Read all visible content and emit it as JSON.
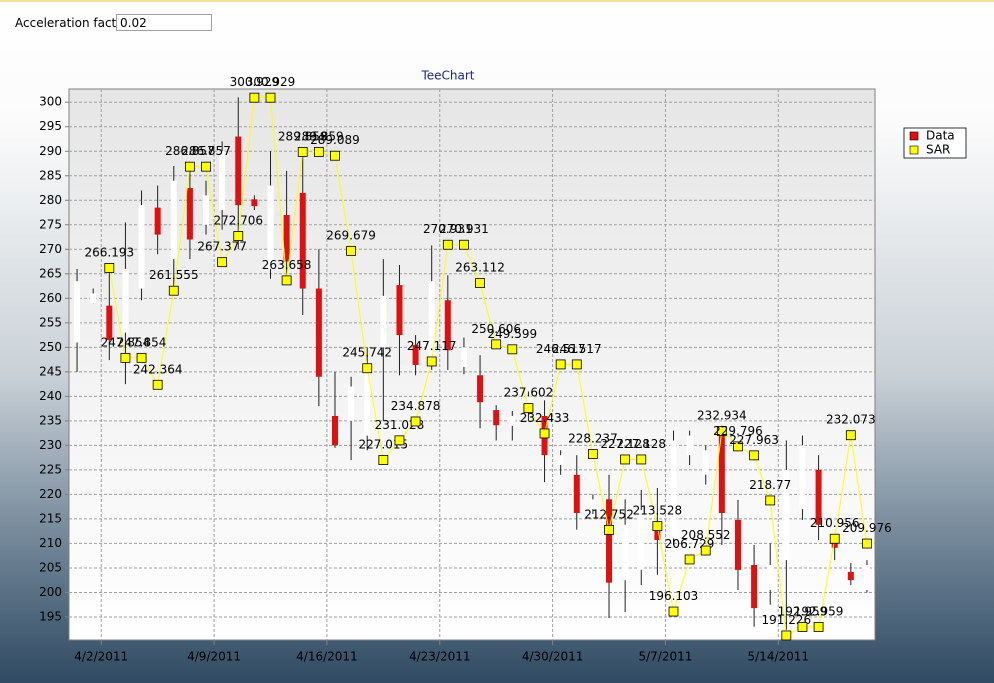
{
  "controls": {
    "acceleration_label": "Acceleration factor",
    "acceleration_value": "0.02"
  },
  "chart_data": {
    "type": "candlestick",
    "title": "TeeChart",
    "x": [
      "3/31/2011",
      "4/1/2011",
      "4/2/2011",
      "4/3/2011",
      "4/4/2011",
      "4/5/2011",
      "4/6/2011",
      "4/7/2011",
      "4/8/2011",
      "4/9/2011",
      "4/10/2011",
      "4/11/2011",
      "4/12/2011",
      "4/13/2011",
      "4/14/2011",
      "4/15/2011",
      "4/16/2011",
      "4/17/2011",
      "4/18/2011",
      "4/19/2011",
      "4/20/2011",
      "4/21/2011",
      "4/22/2011",
      "4/23/2011",
      "4/24/2011",
      "4/25/2011",
      "4/26/2011",
      "4/27/2011",
      "4/28/2011",
      "4/29/2011",
      "4/30/2011",
      "5/1/2011",
      "5/2/2011",
      "5/3/2011",
      "5/4/2011",
      "5/5/2011",
      "5/6/2011",
      "5/7/2011",
      "5/8/2011",
      "5/9/2011",
      "5/10/2011",
      "5/11/2011",
      "5/12/2011",
      "5/13/2011",
      "5/14/2011",
      "5/15/2011",
      "5/16/2011",
      "5/17/2011",
      "5/18/2011",
      "5/19/2011"
    ],
    "series": [
      {
        "name": "Data",
        "type": "candlestick",
        "color": "#e01010",
        "up_color": "#ffffff",
        "open": [
          251,
          259,
          258.5,
          253,
          262,
          278.5,
          268,
          282.5,
          275,
          278,
          293,
          280.2,
          266,
          277,
          281.5,
          262,
          236,
          235,
          232,
          250,
          262.7,
          250.5,
          247.5,
          259.6,
          246,
          244.3,
          237.2,
          234,
          237,
          236,
          226,
          224,
          217,
          219,
          202.5,
          204.6,
          212.7,
          211,
          228,
          224,
          233,
          214.8,
          205.6,
          200.5,
          206.6,
          217,
          225,
          210.7,
          204.2,
          200.5
        ],
        "high": [
          266,
          262,
          266.8,
          275.5,
          282,
          283,
          287,
          287,
          284,
          292,
          301,
          281,
          290,
          286,
          290,
          270,
          245,
          244,
          250,
          268,
          266.8,
          252.5,
          270.8,
          264.7,
          252,
          248.4,
          238.2,
          237,
          241,
          239.2,
          229,
          228,
          220,
          224,
          219,
          220.9,
          221.3,
          233,
          233,
          230,
          234,
          218.9,
          209.7,
          210,
          231,
          232,
          228,
          211.7,
          206,
          206.6
        ],
        "low": [
          245,
          259,
          247.4,
          242.5,
          259.6,
          269,
          261.7,
          268,
          273,
          274,
          270,
          278,
          264,
          262.7,
          256.6,
          238,
          229.5,
          227,
          229,
          235,
          244.3,
          244.3,
          245.4,
          245.4,
          244.5,
          233.5,
          231,
          231,
          235,
          222.5,
          224,
          212.8,
          216,
          194.8,
          196,
          201.5,
          203.6,
          209.7,
          226,
          222,
          209.7,
          200.5,
          193,
          197.5,
          192.4,
          214.8,
          210.7,
          206.6,
          201.5,
          200
        ],
        "close": [
          263.5,
          261,
          251.5,
          266,
          279,
          273,
          284,
          272,
          281,
          290,
          279,
          278.8,
          283,
          267.5,
          262,
          244,
          230,
          242,
          245,
          260.5,
          252.5,
          246.4,
          263.5,
          249.4,
          250,
          238.8,
          234.1,
          236,
          240,
          228,
          228,
          216.2,
          219,
          202,
          213.8,
          216.8,
          210.7,
          231,
          232,
          229,
          216.2,
          204.6,
          196.8,
          205.6,
          225,
          230,
          213.8,
          209.1,
          202.5,
          205.6
        ]
      },
      {
        "name": "SAR",
        "type": "line",
        "color": "#ffff00",
        "marker": "square",
        "show_value_labels": true,
        "values": [
          null,
          null,
          266.193,
          247.854,
          247.854,
          242.364,
          261.555,
          286.857,
          286.857,
          267.377,
          272.706,
          300.929,
          300.929,
          263.658,
          289.859,
          289.859,
          289.089,
          269.679,
          245.742,
          227.015,
          231.028,
          234.878,
          247.117,
          270.931,
          270.931,
          263.112,
          250.606,
          249.599,
          237.602,
          232.433,
          246.517,
          246.517,
          228.237,
          212.752,
          227.128,
          227.128,
          213.528,
          196.103,
          206.729,
          208.552,
          232.934,
          229.796,
          227.963,
          218.77,
          191.226,
          192.959,
          192.959,
          210.956,
          232.073,
          209.976
        ]
      }
    ],
    "xlim": [
      "3/31/2011",
      "5/20/2011"
    ],
    "xticks": [
      "4/2/2011",
      "4/9/2011",
      "4/16/2011",
      "4/23/2011",
      "4/30/2011",
      "5/7/2011",
      "5/14/2011"
    ],
    "ylim": [
      190.3,
      302.7
    ],
    "yticks": [
      195,
      200,
      205,
      210,
      215,
      220,
      225,
      230,
      235,
      240,
      245,
      250,
      255,
      260,
      265,
      270,
      275,
      280,
      285,
      290,
      295,
      300
    ],
    "grid": true,
    "legend": "right"
  }
}
